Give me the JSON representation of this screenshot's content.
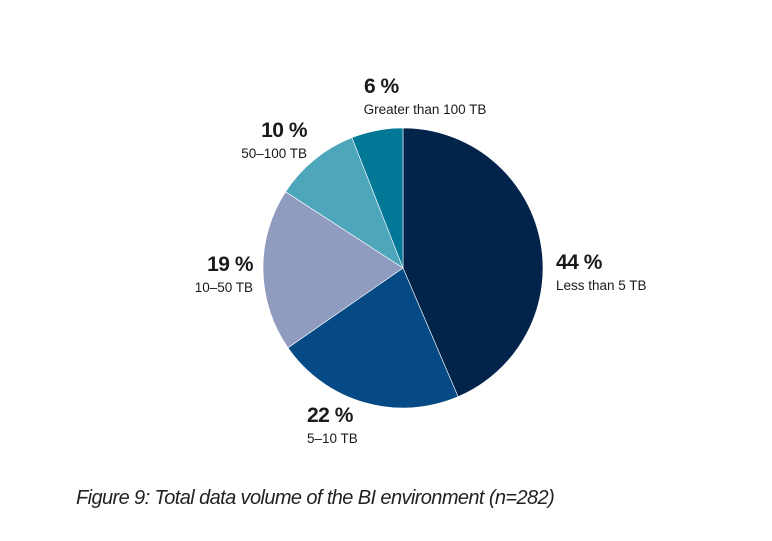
{
  "chart_data": {
    "type": "pie",
    "title": "Figure 9: Total data volume of the BI environment (n=282)",
    "start": "top",
    "direction": "clockwise",
    "slices": [
      {
        "label": "Less than 5 TB",
        "value": 44,
        "value_label": "44 %",
        "color": "#03244a"
      },
      {
        "label": "5–10 TB",
        "value": 22,
        "value_label": "22 %",
        "color": "#054a84"
      },
      {
        "label": "10–50 TB",
        "value": 19,
        "value_label": "19 %",
        "color": "#8f9cbf"
      },
      {
        "label": "50–100 TB",
        "value": 10,
        "value_label": "10 %",
        "color": "#4da6ba"
      },
      {
        "label": "Greater than 100 TB",
        "value": 6,
        "value_label": "6 %",
        "color": "#037896"
      }
    ]
  }
}
